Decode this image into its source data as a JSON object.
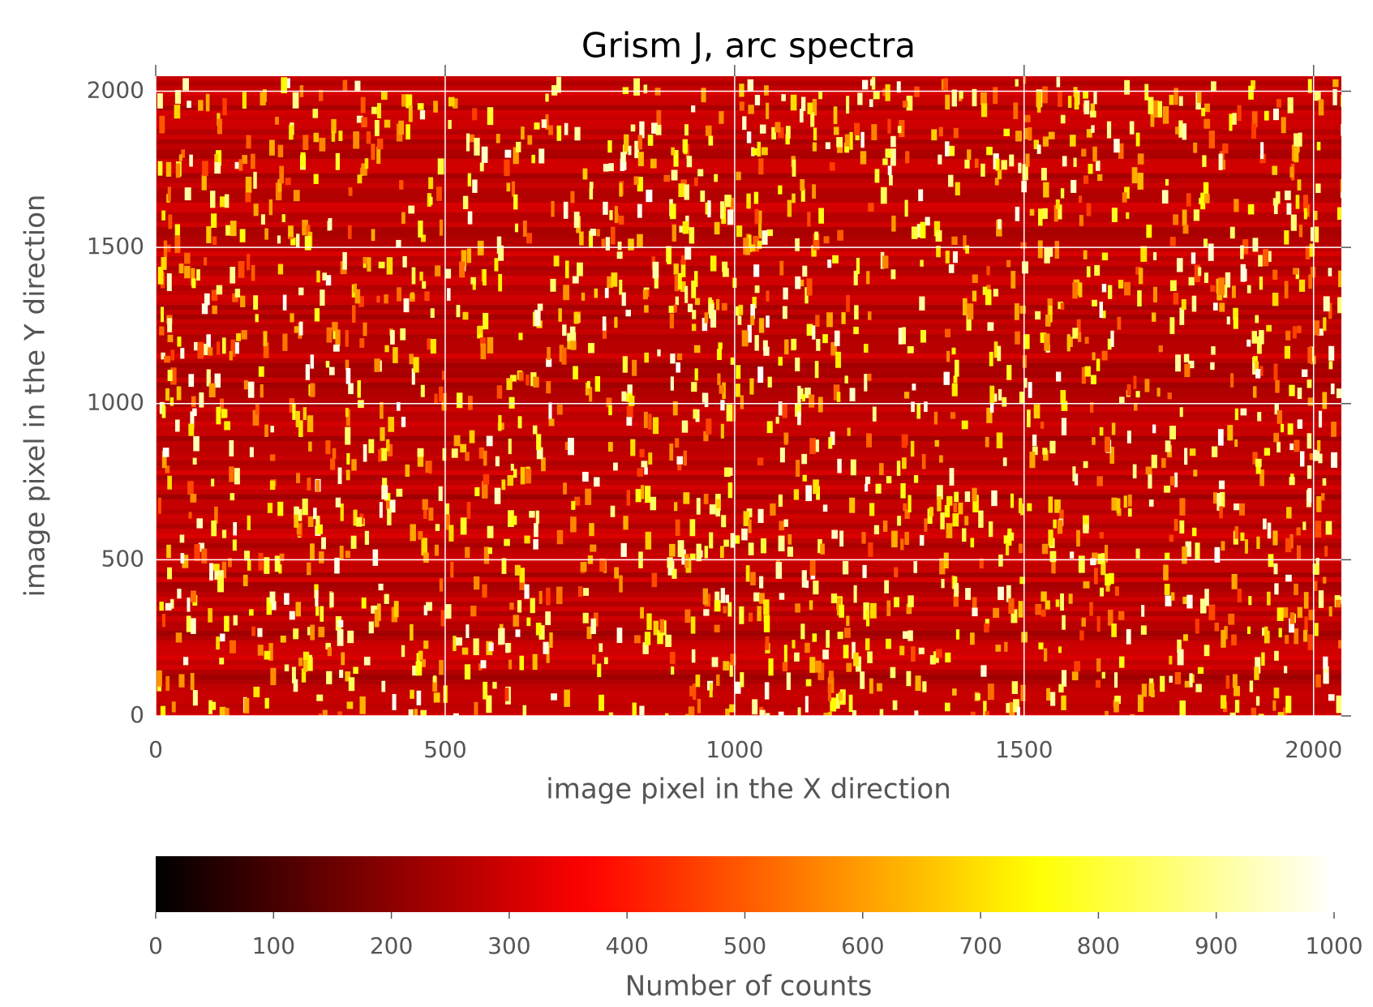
{
  "chart_data": {
    "type": "image",
    "title": "Grism J, arc spectra",
    "xlabel": "image pixel in the X direction",
    "ylabel": "image pixel in the Y direction",
    "xlim": [
      0,
      2048
    ],
    "ylim": [
      0,
      2048
    ],
    "xticks": [
      0,
      500,
      1000,
      1500,
      2000
    ],
    "yticks": [
      0,
      500,
      1000,
      1500,
      2000
    ],
    "grid": true,
    "colormap": "hot",
    "colorbar": {
      "label": "Number of counts",
      "lim": [
        0,
        1000
      ],
      "ticks": [
        0,
        100,
        200,
        300,
        400,
        500,
        600,
        700,
        800,
        900,
        1000
      ]
    }
  }
}
